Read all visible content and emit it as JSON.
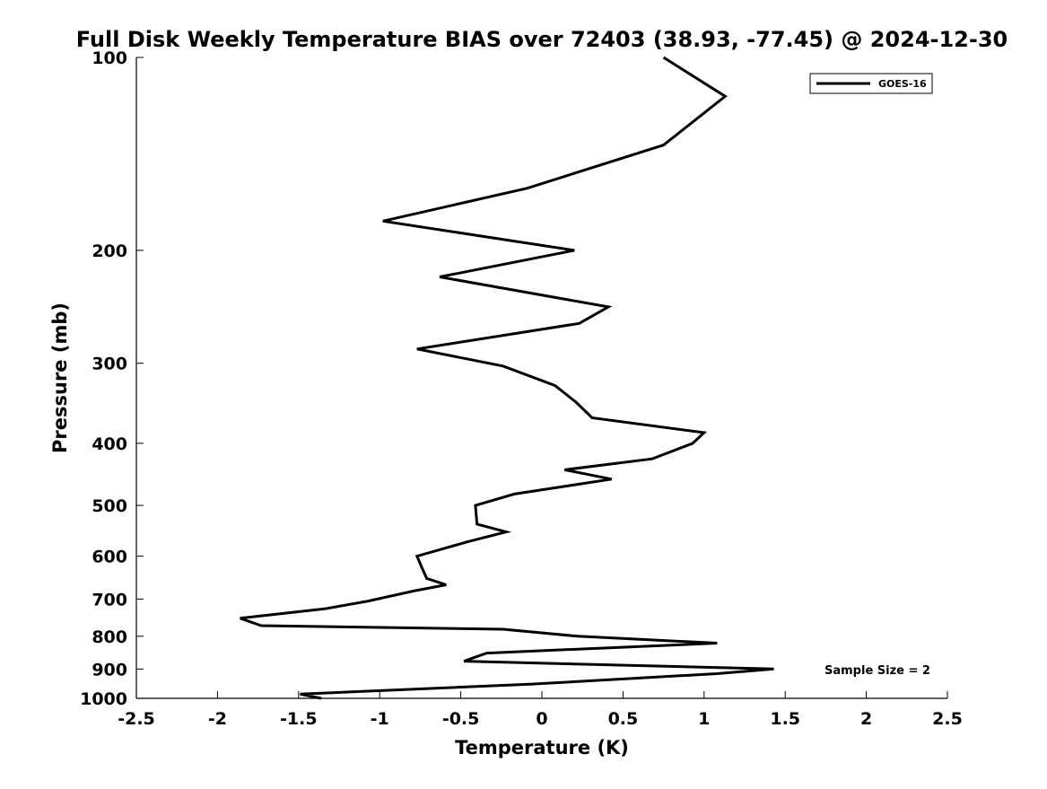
{
  "chart_data": {
    "type": "line",
    "title": "Full Disk Weekly Temperature BIAS over 72403 (38.93, -77.45) @ 2024-12-30",
    "xlabel": "Temperature (K)",
    "ylabel": "Pressure (mb)",
    "xlim": [
      -2.5,
      2.5
    ],
    "ylim": [
      1000,
      100
    ],
    "yscale": "log",
    "y_reversed": true,
    "grid": false,
    "legend_position": "top-right",
    "xticks": [
      -2.5,
      -2,
      -1.5,
      -1,
      -0.5,
      0,
      0.5,
      1,
      1.5,
      2,
      2.5
    ],
    "xtick_labels": [
      "-2.5",
      "-2",
      "-1.5",
      "-1",
      "-0.5",
      "0",
      "0.5",
      "1",
      "1.5",
      "2",
      "2.5"
    ],
    "yticks": [
      100,
      200,
      300,
      400,
      500,
      600,
      700,
      800,
      900,
      1000
    ],
    "ytick_labels": [
      "100",
      "200",
      "300",
      "400",
      "500",
      "600",
      "700",
      "800",
      "900",
      "1000"
    ],
    "annotation": "Sample Size = 2",
    "series": [
      {
        "name": "GOES-16",
        "color": "#000000",
        "points": [
          [
            0.75,
            100
          ],
          [
            1.13,
            115
          ],
          [
            0.75,
            137
          ],
          [
            -0.09,
            160
          ],
          [
            -0.98,
            180
          ],
          [
            0.2,
            200
          ],
          [
            -0.63,
            220
          ],
          [
            0.41,
            245
          ],
          [
            0.23,
            260
          ],
          [
            -0.77,
            285
          ],
          [
            -0.24,
            303
          ],
          [
            0.08,
            325
          ],
          [
            0.21,
            345
          ],
          [
            0.31,
            365
          ],
          [
            1.0,
            385
          ],
          [
            0.93,
            400
          ],
          [
            0.68,
            423
          ],
          [
            0.14,
            440
          ],
          [
            0.43,
            455
          ],
          [
            -0.17,
            480
          ],
          [
            -0.41,
            500
          ],
          [
            -0.4,
            535
          ],
          [
            -0.22,
            550
          ],
          [
            -0.46,
            570
          ],
          [
            -0.77,
            600
          ],
          [
            -0.74,
            625
          ],
          [
            -0.71,
            650
          ],
          [
            -0.59,
            665
          ],
          [
            -0.79,
            680
          ],
          [
            -1.07,
            705
          ],
          [
            -1.34,
            725
          ],
          [
            -1.86,
            750
          ],
          [
            -1.73,
            770
          ],
          [
            -0.24,
            780
          ],
          [
            0.22,
            800
          ],
          [
            1.08,
            820
          ],
          [
            -0.34,
            850
          ],
          [
            -0.48,
            875
          ],
          [
            1.43,
            900
          ],
          [
            1.08,
            915
          ],
          [
            -0.06,
            950
          ],
          [
            -1.49,
            985
          ],
          [
            -1.36,
            1000
          ]
        ]
      }
    ]
  }
}
